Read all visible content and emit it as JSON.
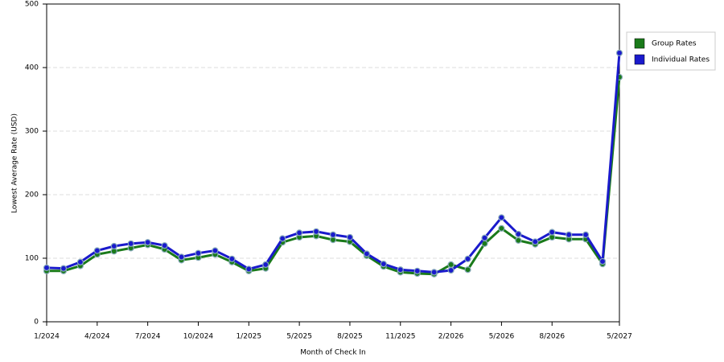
{
  "chart_data": {
    "type": "line",
    "xlabel": "Month of Check In",
    "ylabel": "Lowest Average Rate (USD)",
    "categories": [
      "1/2024",
      null,
      null,
      "4/2024",
      null,
      null,
      "7/2024",
      null,
      null,
      "10/2024",
      null,
      null,
      "1/2025",
      null,
      null,
      "5/2025",
      null,
      null,
      "8/2025",
      null,
      null,
      "11/2025",
      null,
      null,
      "2/2026",
      null,
      null,
      "5/2026",
      null,
      null,
      "8/2026",
      null,
      null,
      null,
      "5/2027"
    ],
    "series": [
      {
        "name": "Group Rates",
        "color": "#1a7a1a",
        "values": [
          80,
          80,
          88,
          106,
          111,
          116,
          121,
          114,
          97,
          101,
          106,
          94,
          80,
          84,
          125,
          133,
          135,
          129,
          126,
          104,
          87,
          78,
          76,
          75,
          90,
          82,
          123,
          147,
          128,
          122,
          133,
          130,
          130,
          91,
          385
        ]
      },
      {
        "name": "Individual Rates",
        "color": "#1a1acc",
        "values": [
          85,
          84,
          94,
          112,
          119,
          123,
          125,
          120,
          102,
          108,
          112,
          99,
          83,
          90,
          131,
          140,
          142,
          137,
          133,
          107,
          91,
          82,
          80,
          78,
          81,
          99,
          132,
          164,
          138,
          126,
          141,
          137,
          137,
          95,
          423
        ]
      }
    ],
    "ylim": [
      0,
      500
    ],
    "yticks": [
      0,
      100,
      200,
      300,
      400,
      500
    ],
    "grid": true,
    "legend": "right"
  }
}
